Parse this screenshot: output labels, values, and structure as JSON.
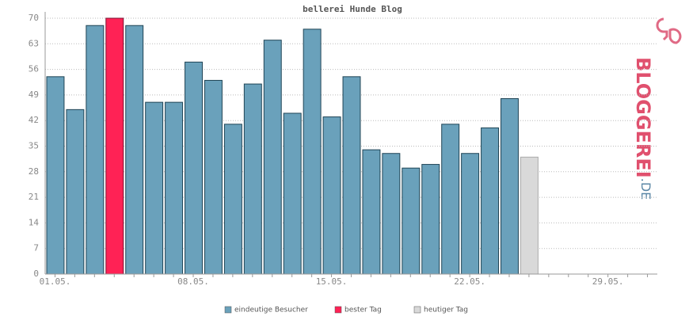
{
  "chart_data": {
    "type": "bar",
    "title": "bellerei Hunde Blog",
    "categories": [
      "01.05.",
      null,
      null,
      null,
      null,
      null,
      null,
      "08.05.",
      null,
      null,
      null,
      null,
      null,
      null,
      "15.05.",
      null,
      null,
      null,
      null,
      null,
      null,
      "22.05.",
      null,
      null,
      null,
      null,
      null,
      null,
      "29.05.",
      null,
      null
    ],
    "series": [
      {
        "name": "eindeutige Besucher",
        "color": "#6aa1bb",
        "values": [
          54,
          45,
          68,
          null,
          68,
          47,
          47,
          58,
          53,
          41,
          52,
          64,
          44,
          67,
          43,
          54,
          34,
          33,
          29,
          30,
          41,
          33,
          40,
          48,
          null,
          null,
          null,
          null,
          null,
          null,
          null
        ]
      },
      {
        "name": "bester Tag",
        "color": "#ff2255",
        "values": [
          null,
          null,
          null,
          70,
          null,
          null,
          null,
          null,
          null,
          null,
          null,
          null,
          null,
          null,
          null,
          null,
          null,
          null,
          null,
          null,
          null,
          null,
          null,
          null,
          null,
          null,
          null,
          null,
          null,
          null,
          null
        ]
      },
      {
        "name": "heutiger Tag",
        "color": "#d9d9d9",
        "values": [
          null,
          null,
          null,
          null,
          null,
          null,
          null,
          null,
          null,
          null,
          null,
          null,
          null,
          null,
          null,
          null,
          null,
          null,
          null,
          null,
          null,
          null,
          null,
          null,
          32,
          null,
          null,
          null,
          null,
          null,
          null
        ]
      }
    ],
    "ylim": [
      0,
      70
    ],
    "yticks": [
      0,
      7,
      14,
      21,
      28,
      35,
      42,
      49,
      56,
      63,
      70
    ],
    "grid": true
  },
  "logo": {
    "name": "BLOGGEREI",
    "suffix": ".DE"
  }
}
